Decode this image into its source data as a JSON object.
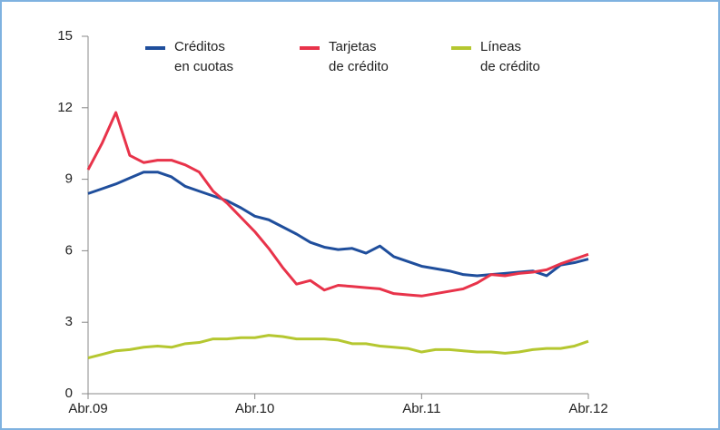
{
  "chart_data": {
    "type": "line",
    "categories": [
      "Abr.09",
      null,
      null,
      null,
      null,
      null,
      null,
      null,
      null,
      null,
      null,
      null,
      "Abr.10",
      null,
      null,
      null,
      null,
      null,
      null,
      null,
      null,
      null,
      null,
      null,
      "Abr.11",
      null,
      null,
      null,
      null,
      null,
      null,
      null,
      null,
      null,
      null,
      null,
      "Abr.12"
    ],
    "series": [
      {
        "name": "Créditos\nen cuotas",
        "color": "#1f4e9c",
        "values": [
          8.4,
          8.6,
          8.8,
          9.05,
          9.3,
          9.3,
          9.1,
          8.7,
          8.5,
          8.3,
          8.1,
          7.8,
          7.45,
          7.3,
          7.0,
          6.7,
          6.35,
          6.15,
          6.05,
          6.1,
          5.9,
          6.2,
          5.75,
          5.55,
          5.35,
          5.25,
          5.15,
          5.0,
          4.95,
          5.0,
          5.05,
          5.1,
          5.15,
          4.95,
          5.4,
          5.5,
          5.65
        ]
      },
      {
        "name": "Tarjetas\nde crédito",
        "color": "#e8334a",
        "values": [
          9.4,
          10.5,
          11.8,
          10.0,
          9.7,
          9.8,
          9.8,
          9.6,
          9.3,
          8.5,
          8.0,
          7.4,
          6.8,
          6.1,
          5.3,
          4.6,
          4.75,
          4.35,
          4.55,
          4.5,
          4.45,
          4.4,
          4.2,
          4.15,
          4.1,
          4.2,
          4.3,
          4.4,
          4.65,
          5.0,
          4.95,
          5.05,
          5.1,
          5.2,
          5.45,
          5.65,
          5.85
        ]
      },
      {
        "name": "Líneas\nde crédito",
        "color": "#b5c730",
        "values": [
          1.5,
          1.65,
          1.8,
          1.85,
          1.95,
          2.0,
          1.95,
          2.1,
          2.15,
          2.3,
          2.3,
          2.35,
          2.35,
          2.45,
          2.4,
          2.3,
          2.3,
          2.3,
          2.25,
          2.1,
          2.1,
          2.0,
          1.95,
          1.9,
          1.75,
          1.85,
          1.85,
          1.8,
          1.75,
          1.75,
          1.7,
          1.75,
          1.85,
          1.9,
          1.9,
          2.0,
          2.2
        ]
      }
    ],
    "ylim": [
      0,
      15
    ],
    "yticks": [
      0,
      3,
      6,
      9,
      12,
      15
    ],
    "grid": false
  }
}
